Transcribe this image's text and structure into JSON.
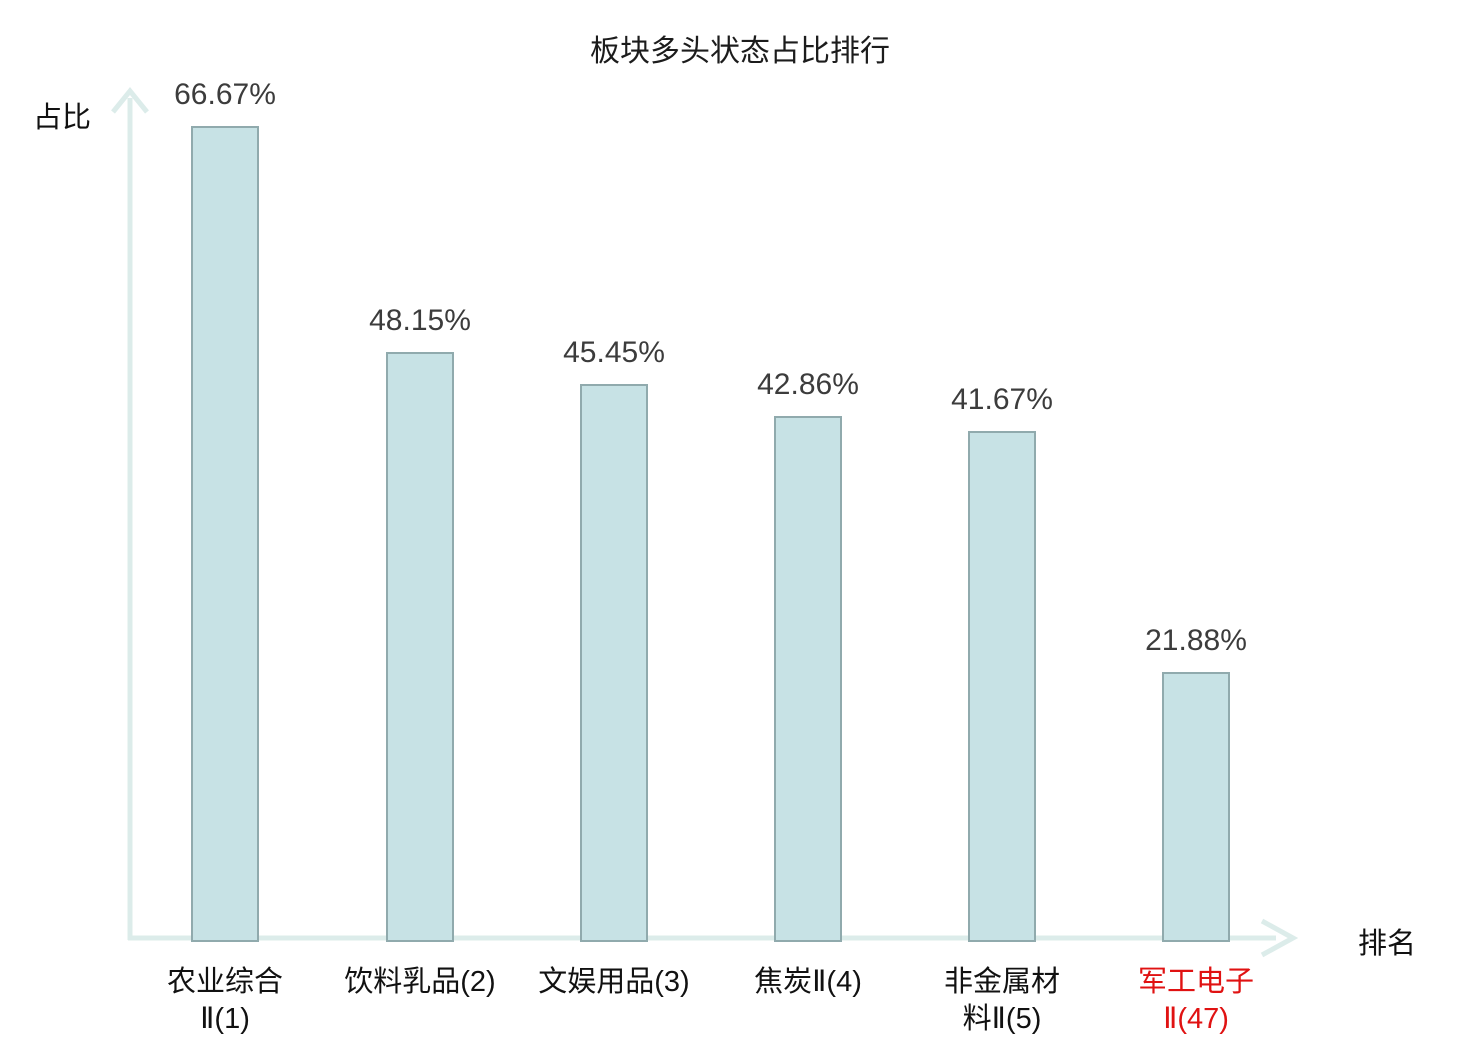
{
  "chart": {
    "title": "板块多头状态占比排行",
    "ylabel": "占比",
    "xlabel": "排名"
  },
  "chart_data": {
    "type": "bar",
    "title": "板块多头状态占比排行",
    "xlabel": "排名",
    "ylabel": "占比",
    "categories": [
      "农业综合Ⅱ(1)",
      "饮料乳品(2)",
      "文娱用品(3)",
      "焦炭Ⅱ(4)",
      "非金属材料Ⅱ(5)",
      "军工电子Ⅱ(47)"
    ],
    "category_display": [
      "农业综合\nⅡ(1)",
      "饮料乳品(2)",
      "文娱用品(3)",
      "焦炭Ⅱ(4)",
      "非金属材\n料Ⅱ(5)",
      "军工电子\nⅡ(47)"
    ],
    "values": [
      66.67,
      48.15,
      45.45,
      42.86,
      41.67,
      21.88
    ],
    "value_labels": [
      "66.67%",
      "48.15%",
      "45.45%",
      "42.86%",
      "41.67%",
      "21.88%"
    ],
    "ylim": [
      0,
      70
    ],
    "grid": false,
    "legend": false,
    "highlighted_category_index": 5,
    "colors": {
      "bar_fill": "#c7e2e5",
      "bar_border": "#90aaad",
      "axis": "#dcecea",
      "value_label": "#3c3c3c",
      "category_label": "#111111",
      "highlight": "#e01212",
      "title": "#1c1c1c"
    }
  }
}
